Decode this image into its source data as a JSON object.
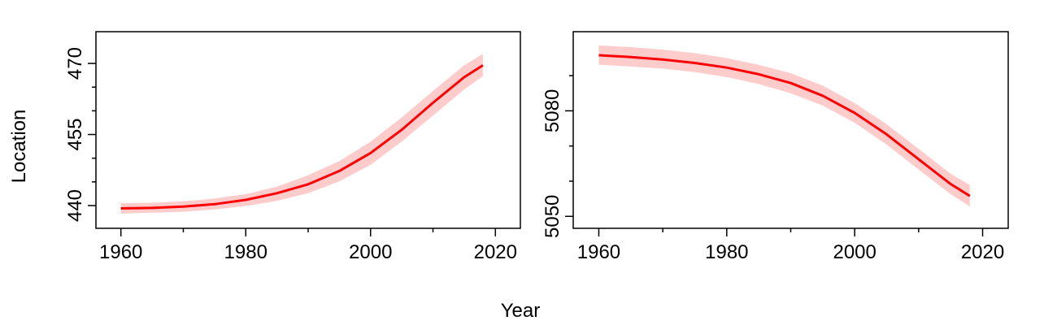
{
  "figure": {
    "ylabel": "Location",
    "xlabel": "Year"
  },
  "chart_data": [
    {
      "type": "line",
      "title": "",
      "xlabel": "",
      "ylabel": "",
      "xlim": [
        1956,
        2024
      ],
      "ylim": [
        435.2,
        476.7
      ],
      "xticks": [
        1960,
        1980,
        2000,
        2020
      ],
      "xtick_labels": [
        "1960",
        "1980",
        "2000",
        "2020"
      ],
      "xticks_minor": [
        1970,
        1990,
        2010
      ],
      "yticks": [
        440,
        455,
        470
      ],
      "ytick_labels": [
        "440",
        "455",
        "470"
      ],
      "yticks_minor": [
        445,
        450,
        460,
        465
      ],
      "grid": false,
      "line_color": "#ff0000",
      "band_color": "#ffcccc",
      "series": [
        {
          "x": [
            1960,
            1965,
            1970,
            1975,
            1980,
            1985,
            1990,
            1995,
            2000,
            2005,
            2010,
            2015,
            2018
          ],
          "y": [
            439.4,
            439.5,
            439.8,
            440.3,
            441.2,
            442.6,
            444.5,
            447.3,
            451.1,
            456.0,
            461.7,
            467.1,
            469.6
          ],
          "lower": [
            438.3,
            438.5,
            438.7,
            439.2,
            439.9,
            441.0,
            442.6,
            445.1,
            448.6,
            453.5,
            459.0,
            464.5,
            467.3
          ],
          "upper": [
            440.5,
            440.6,
            440.9,
            441.5,
            442.4,
            444.0,
            446.4,
            449.4,
            453.5,
            458.6,
            464.2,
            469.6,
            472.0
          ]
        }
      ]
    },
    {
      "type": "line",
      "title": "",
      "xlabel": "",
      "ylabel": "",
      "xlim": [
        1956,
        2024
      ],
      "ylim": [
        5046.6,
        5102.5
      ],
      "xticks": [
        1960,
        1980,
        2000,
        2020
      ],
      "xtick_labels": [
        "1960",
        "1980",
        "2000",
        "2020"
      ],
      "xticks_minor": [
        1970,
        1990,
        2010
      ],
      "yticks": [
        5050,
        5080
      ],
      "ytick_labels": [
        "5050",
        "5080"
      ],
      "yticks_minor": [
        5060,
        5070,
        5090
      ],
      "grid": false,
      "line_color": "#ff0000",
      "band_color": "#ffcccc",
      "series": [
        {
          "x": [
            1960,
            1965,
            1970,
            1975,
            1980,
            1985,
            1990,
            1995,
            2000,
            2005,
            2010,
            2015,
            2018
          ],
          "y": [
            5095.8,
            5095.3,
            5094.6,
            5093.6,
            5092.3,
            5090.4,
            5087.9,
            5084.3,
            5079.4,
            5073.3,
            5066.2,
            5059.2,
            5055.8
          ],
          "lower": [
            5093.1,
            5092.6,
            5092.0,
            5091.0,
            5089.6,
            5087.6,
            5085.0,
            5081.5,
            5076.6,
            5070.4,
            5063.3,
            5056.3,
            5052.8
          ],
          "upper": [
            5098.6,
            5098.1,
            5097.4,
            5096.4,
            5095.0,
            5093.1,
            5090.7,
            5087.2,
            5082.2,
            5076.2,
            5069.2,
            5062.1,
            5058.9
          ]
        }
      ]
    }
  ]
}
